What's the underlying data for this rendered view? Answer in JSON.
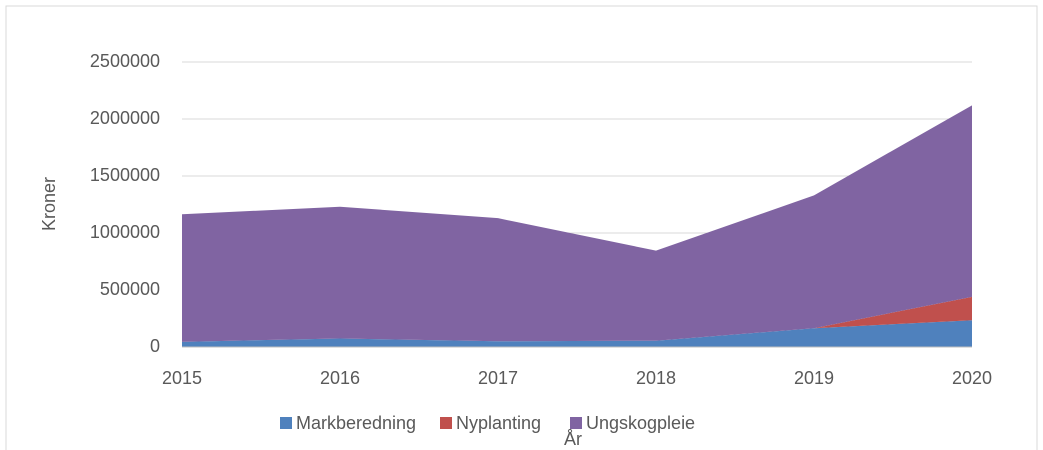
{
  "chart_data": {
    "type": "stacked_area",
    "x_label": "År",
    "y_label": "Kroner",
    "x": [
      2015,
      2016,
      2017,
      2018,
      2019,
      2020
    ],
    "xlim": [
      2015,
      2020
    ],
    "xticks": [
      2015,
      2016,
      2017,
      2018,
      2019,
      2020
    ],
    "ylim": [
      0,
      2500000
    ],
    "yticks": [
      0,
      500000,
      1000000,
      1500000,
      2000000,
      2500000
    ],
    "grid": true,
    "legend": "bottom",
    "series": [
      {
        "name": "Markberedning",
        "color": "#4f81bd",
        "values": [
          45000,
          75000,
          50000,
          55000,
          165000,
          235000
        ]
      },
      {
        "name": "Nyplanting",
        "color": "#c0504d",
        "values": [
          0,
          0,
          0,
          0,
          0,
          205000
        ]
      },
      {
        "name": "Ungskogpleie",
        "color": "#8064a2",
        "values": [
          1120000,
          1155000,
          1080000,
          790000,
          1165000,
          1680000
        ]
      }
    ]
  }
}
